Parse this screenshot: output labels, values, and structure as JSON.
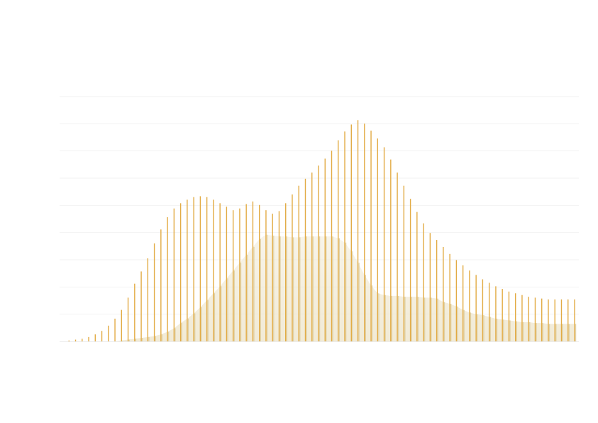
{
  "chart_data": {
    "type": "bar",
    "x": [
      0,
      1,
      2,
      3,
      4,
      5,
      6,
      7,
      8,
      9,
      10,
      11,
      12,
      13,
      14,
      15,
      16,
      17,
      18,
      19,
      20,
      21,
      22,
      23,
      24,
      25,
      26,
      27,
      28,
      29,
      30,
      31,
      32,
      33,
      34,
      35,
      36,
      37,
      38,
      39,
      40,
      41,
      42,
      43,
      44,
      45,
      46,
      47,
      48,
      49,
      50,
      51,
      52,
      53,
      54,
      55,
      56,
      57,
      58,
      59,
      60,
      61,
      62,
      63,
      64,
      65,
      66,
      67,
      68,
      69,
      70,
      71,
      72,
      73,
      74,
      75,
      76,
      77,
      78
    ],
    "series": [
      {
        "values": [
          0,
          0.1,
          0.2,
          0.3,
          0.5,
          0.8,
          1.2,
          1.8,
          2.6,
          3.6,
          5.0,
          6.6,
          8.0,
          9.5,
          11.2,
          12.8,
          14.2,
          15.2,
          15.8,
          16.2,
          16.5,
          16.6,
          16.5,
          16.2,
          15.8,
          15.4,
          15.0,
          15.2,
          15.7,
          16.0,
          15.6,
          15.0,
          14.6,
          14.9,
          15.8,
          16.8,
          17.8,
          18.6,
          19.3,
          20.1,
          20.9,
          21.8,
          23.0,
          24.0,
          24.8,
          25.3,
          24.9,
          24.1,
          23.2,
          22.2,
          20.8,
          19.3,
          17.8,
          16.3,
          14.8,
          13.5,
          12.4,
          11.6,
          10.8,
          10.0,
          9.3,
          8.7,
          8.1,
          7.6,
          7.1,
          6.7,
          6.3,
          6.0,
          5.7,
          5.5,
          5.3,
          5.1,
          5.0,
          4.9,
          4.8,
          4.8,
          4.8,
          4.8,
          4.8
        ],
        "color": "#e0a63a"
      },
      {
        "values": [
          0,
          0,
          0,
          0,
          0,
          0,
          0,
          0,
          0,
          0.1,
          0.2,
          0.3,
          0.4,
          0.5,
          0.6,
          0.8,
          1.1,
          1.5,
          2.1,
          2.6,
          3.2,
          3.9,
          4.7,
          5.5,
          6.3,
          7.2,
          8.1,
          9.0,
          9.9,
          10.8,
          11.7,
          12.2,
          12.1,
          12.0,
          12.0,
          11.9,
          11.9,
          12.0,
          12.0,
          12.0,
          12.0,
          12.0,
          11.8,
          11.3,
          10.3,
          9.0,
          7.6,
          6.4,
          5.5,
          5.3,
          5.2,
          5.2,
          5.1,
          5.1,
          5.1,
          5.0,
          5.0,
          4.9,
          4.5,
          4.3,
          4.0,
          3.6,
          3.3,
          3.1,
          3.0,
          2.8,
          2.6,
          2.5,
          2.4,
          2.3,
          2.2,
          2.2,
          2.1,
          2.1,
          2.0,
          2.0,
          2.0,
          2.0,
          2.0
        ],
        "color": "#d9c999"
      }
    ],
    "ylim": [
      0,
      28
    ],
    "grid": true
  }
}
